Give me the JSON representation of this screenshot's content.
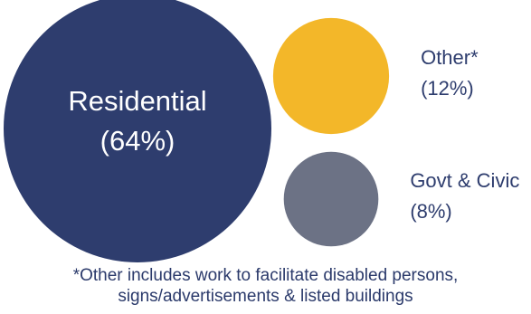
{
  "chart_data": {
    "type": "bubble",
    "series": [
      {
        "name": "Residential",
        "value": 64,
        "label": "Residential",
        "pct_label": "(64%)",
        "color": "#2e3d6e",
        "label_position": "inside"
      },
      {
        "name": "Other*",
        "value": 12,
        "label": "Other*",
        "pct_label": "(12%)",
        "color": "#f3b729",
        "label_position": "right"
      },
      {
        "name": "Govt & Civic",
        "value": 8,
        "label": "Govt & Civic",
        "pct_label": "(8%)",
        "color": "#6c7285",
        "label_position": "right"
      }
    ],
    "footnote": [
      "*Other includes work to facilitate disabled persons,",
      "signs/advertisements & listed buildings"
    ],
    "colors": {
      "text_dark": "#2e3d6e",
      "text_light": "#ffffff"
    }
  }
}
